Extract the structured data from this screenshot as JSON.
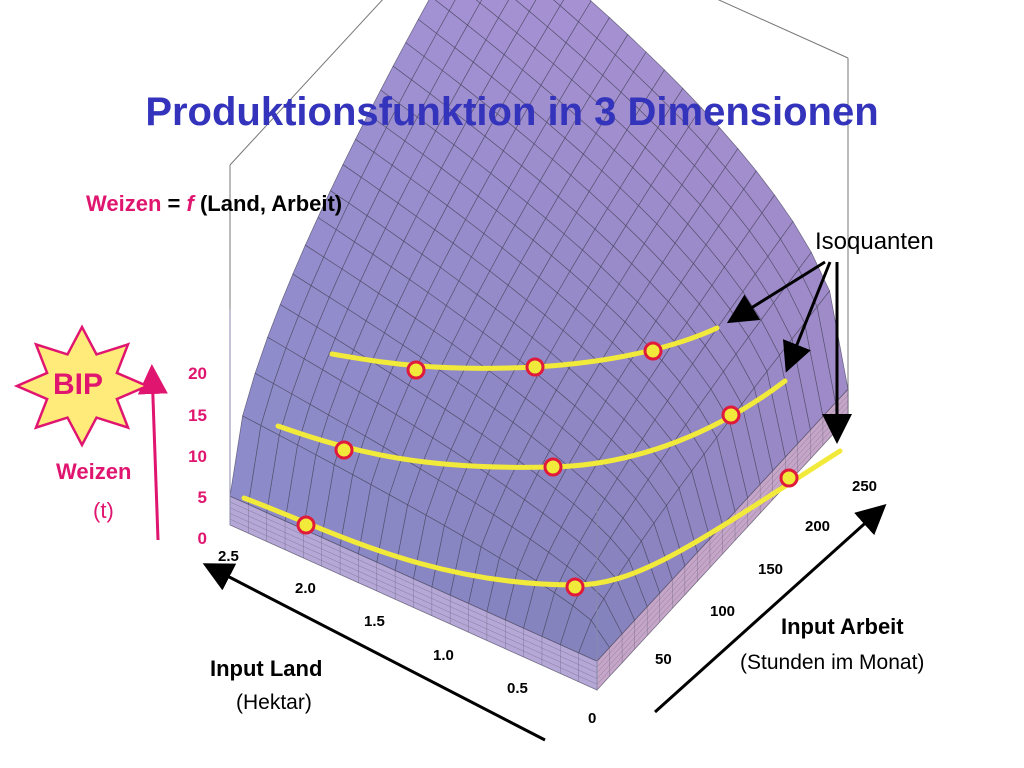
{
  "title": "Produktionsfunktion in 3 Dimensionen",
  "formula": {
    "output": "Weizen",
    "equals": "=",
    "function": "f",
    "args": "(Land, Arbeit)"
  },
  "badge": "BIP",
  "isoquant_label": "Isoquanten",
  "colors": {
    "title": "#3333bb",
    "accent": "#e0156f",
    "surface": "#9b96d8",
    "grid": "#4a4760",
    "isoquant": "#f2ea3a",
    "point_fill": "#f2ea3a",
    "point_stroke": "#e01a3a",
    "badge_fill": "#ffeb7a"
  },
  "chart_data": {
    "type": "surface3d",
    "title": "Produktionsfunktion in 3 Dimensionen",
    "z_axis": {
      "label": "Weizen",
      "unit": "(t)",
      "ticks": [
        "0",
        "5",
        "10",
        "15",
        "20"
      ],
      "range": [
        0,
        20
      ]
    },
    "land_axis": {
      "label": "Input Land",
      "unit": "(Hektar)",
      "ticks": [
        "0.5",
        "1.0",
        "1.5",
        "2.0",
        "2.5"
      ],
      "range": [
        0,
        2.5
      ]
    },
    "labor_axis": {
      "label": "Input Arbeit",
      "unit": "(Stunden im Monat)",
      "ticks": [
        "0",
        "50",
        "100",
        "150",
        "200",
        "250"
      ],
      "range": [
        0,
        250
      ]
    },
    "isoquants": [
      {
        "level": "low",
        "points": [
          [
            1.0,
            50
          ],
          [
            2.5,
            200
          ]
        ]
      },
      {
        "level": "mid",
        "points": [
          [
            1.2,
            120
          ],
          [
            2.3,
            180
          ],
          [
            1.9,
            240
          ]
        ]
      },
      {
        "level": "high",
        "points": [
          [
            1.5,
            200
          ],
          [
            2.0,
            220
          ],
          [
            2.4,
            235
          ]
        ]
      }
    ]
  }
}
